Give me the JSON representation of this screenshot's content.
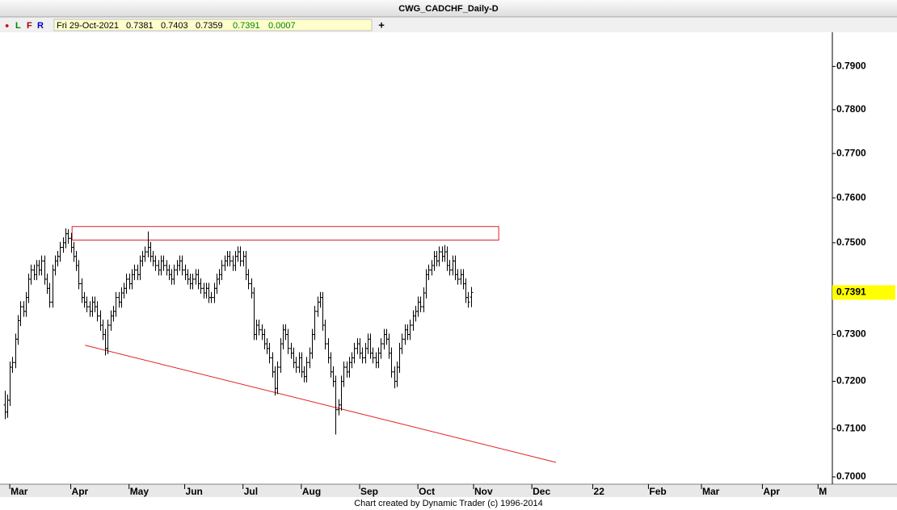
{
  "header": {
    "toolbar": [
      "●",
      "L",
      "F",
      "R"
    ],
    "plus": "+"
  },
  "footer": "Chart created by Dynamic Trader  (c)  1996-2014",
  "chart_data": {
    "type": "ohlc",
    "title": "CWG_CADCHF_Daily-D",
    "date": "Fri 29-Oct-2021",
    "change": 0.0007,
    "log": true,
    "color": "#000000",
    "annotation_color": "#e02020",
    "last_price_color": "#ffff00",
    "xlim": [
      -3.7,
      310.4
    ],
    "ylim": [
      0.6985,
      0.798
    ],
    "xticks": [
      {
        "value": 0,
        "label": "Mar"
      },
      {
        "value": 23,
        "label": "Apr"
      },
      {
        "value": 45,
        "label": "May"
      },
      {
        "value": 66,
        "label": "Jun"
      },
      {
        "value": 88,
        "label": "Jul"
      },
      {
        "value": 110,
        "label": "Aug"
      },
      {
        "value": 132,
        "label": "Sep"
      },
      {
        "value": 154,
        "label": "Oct"
      },
      {
        "value": 175,
        "label": "Nov"
      },
      {
        "value": 197,
        "label": "Dec"
      },
      {
        "value": 220,
        "label": "22"
      },
      {
        "value": 241,
        "label": "Feb"
      },
      {
        "value": 261,
        "label": "Mar"
      },
      {
        "value": 284,
        "label": "Apr"
      },
      {
        "value": 305,
        "label": "M"
      }
    ],
    "yticks": [
      {
        "value": 0.7,
        "label": "0.7000"
      },
      {
        "value": 0.71,
        "label": "0.7100"
      },
      {
        "value": 0.72,
        "label": "0.7200"
      },
      {
        "value": 0.73,
        "label": "0.7300"
      },
      {
        "value": 0.75,
        "label": "0.7500"
      },
      {
        "value": 0.76,
        "label": "0.7600"
      },
      {
        "value": 0.77,
        "label": "0.7700"
      },
      {
        "value": 0.78,
        "label": "0.7800"
      },
      {
        "value": 0.79,
        "label": "0.7900"
      }
    ],
    "rectangle": {
      "x": [
        23.5,
        184.5
      ],
      "y": [
        0.7506,
        0.7536
      ]
    },
    "trendline": {
      "x": [
        28.4,
        206.1
      ],
      "y": [
        0.7277,
        0.703
      ]
    },
    "x": [
      -2,
      -1,
      0,
      1,
      2,
      3,
      4,
      5,
      6,
      7,
      8,
      9,
      10,
      11,
      12,
      13,
      14,
      15,
      16,
      17,
      18,
      19,
      20,
      21,
      22,
      23,
      24,
      25,
      26,
      27,
      28,
      29,
      30,
      31,
      32,
      33,
      34,
      35,
      36,
      37,
      38,
      39,
      40,
      41,
      42,
      43,
      44,
      45,
      46,
      47,
      48,
      49,
      50,
      51,
      52,
      53,
      54,
      55,
      56,
      57,
      58,
      59,
      60,
      61,
      62,
      63,
      64,
      65,
      66,
      67,
      68,
      69,
      70,
      71,
      72,
      73,
      74,
      75,
      76,
      77,
      78,
      79,
      80,
      81,
      82,
      83,
      84,
      85,
      86,
      87,
      88,
      89,
      90,
      91,
      92,
      93,
      94,
      95,
      96,
      97,
      98,
      99,
      100,
      101,
      102,
      103,
      104,
      105,
      106,
      107,
      108,
      109,
      110,
      111,
      112,
      113,
      114,
      115,
      116,
      117,
      118,
      119,
      120,
      121,
      122,
      123,
      124,
      125,
      126,
      127,
      128,
      129,
      130,
      131,
      132,
      133,
      134,
      135,
      136,
      137,
      138,
      139,
      140,
      141,
      142,
      143,
      144,
      145,
      146,
      147,
      148,
      149,
      150,
      151,
      152,
      153,
      154,
      155,
      156,
      157,
      158,
      159,
      160,
      161,
      162,
      163,
      164,
      165,
      166,
      167,
      168,
      169,
      170,
      171,
      172,
      173,
      174
    ],
    "open": [
      0.715,
      0.7135,
      0.716,
      0.723,
      0.724,
      0.729,
      0.733,
      0.736,
      0.735,
      0.738,
      0.742,
      0.744,
      0.743,
      0.745,
      0.744,
      0.746,
      0.742,
      0.74,
      0.737,
      0.744,
      0.746,
      0.747,
      0.749,
      0.75,
      0.752,
      0.751,
      0.749,
      0.747,
      0.745,
      0.741,
      0.738,
      0.737,
      0.736,
      0.735,
      0.737,
      0.736,
      0.734,
      0.732,
      0.73,
      0.727,
      0.732,
      0.734,
      0.735,
      0.738,
      0.737,
      0.739,
      0.74,
      0.742,
      0.741,
      0.743,
      0.744,
      0.743,
      0.746,
      0.747,
      0.748,
      0.749,
      0.747,
      0.746,
      0.745,
      0.744,
      0.746,
      0.745,
      0.744,
      0.743,
      0.742,
      0.744,
      0.745,
      0.746,
      0.744,
      0.743,
      0.742,
      0.741,
      0.742,
      0.743,
      0.741,
      0.74,
      0.739,
      0.74,
      0.738,
      0.738,
      0.74,
      0.742,
      0.743,
      0.745,
      0.746,
      0.747,
      0.746,
      0.745,
      0.747,
      0.748,
      0.746,
      0.747,
      0.743,
      0.741,
      0.739,
      0.73,
      0.732,
      0.731,
      0.73,
      0.728,
      0.727,
      0.725,
      0.722,
      0.7185,
      0.723,
      0.728,
      0.731,
      0.73,
      0.727,
      0.726,
      0.724,
      0.723,
      0.725,
      0.722,
      0.721,
      0.724,
      0.726,
      0.73,
      0.735,
      0.737,
      0.738,
      0.732,
      0.728,
      0.725,
      0.722,
      0.72,
      0.714,
      0.715,
      0.72,
      0.723,
      0.722,
      0.724,
      0.725,
      0.727,
      0.728,
      0.726,
      0.725,
      0.727,
      0.729,
      0.726,
      0.725,
      0.724,
      0.726,
      0.728,
      0.73,
      0.729,
      0.726,
      0.722,
      0.72,
      0.723,
      0.727,
      0.729,
      0.731,
      0.73,
      0.732,
      0.734,
      0.735,
      0.737,
      0.736,
      0.739,
      0.743,
      0.744,
      0.745,
      0.747,
      0.746,
      0.748,
      0.747,
      0.748,
      0.745,
      0.744,
      0.746,
      0.743,
      0.742,
      0.743,
      0.741,
      0.738,
      0.7381
    ],
    "high": [
      0.718,
      0.7172,
      0.7242,
      0.7252,
      0.7302,
      0.7342,
      0.7372,
      0.7372,
      0.7392,
      0.7432,
      0.7452,
      0.7452,
      0.7462,
      0.7462,
      0.7472,
      0.7472,
      0.7432,
      0.7412,
      0.7452,
      0.7472,
      0.7482,
      0.7502,
      0.7512,
      0.7532,
      0.753,
      0.7522,
      0.7502,
      0.7482,
      0.7462,
      0.7422,
      0.7392,
      0.7382,
      0.7372,
      0.7382,
      0.7382,
      0.7372,
      0.7352,
      0.7332,
      0.7312,
      0.7332,
      0.7352,
      0.7362,
      0.7392,
      0.7392,
      0.7402,
      0.7412,
      0.7432,
      0.7432,
      0.7442,
      0.7452,
      0.7452,
      0.7472,
      0.7482,
      0.7492,
      0.7525,
      0.7502,
      0.7482,
      0.7472,
      0.7462,
      0.7472,
      0.7472,
      0.7462,
      0.7452,
      0.7442,
      0.7452,
      0.7462,
      0.7472,
      0.7472,
      0.7452,
      0.7442,
      0.7432,
      0.7432,
      0.7442,
      0.7442,
      0.7422,
      0.7412,
      0.7412,
      0.7412,
      0.7392,
      0.7412,
      0.7432,
      0.7442,
      0.7462,
      0.7472,
      0.7482,
      0.7482,
      0.7472,
      0.7482,
      0.7492,
      0.7492,
      0.7482,
      0.7482,
      0.7442,
      0.7422,
      0.7402,
      0.7332,
      0.7332,
      0.7322,
      0.7312,
      0.7292,
      0.7282,
      0.7262,
      0.7232,
      0.7242,
      0.7292,
      0.7322,
      0.7322,
      0.7312,
      0.7282,
      0.7272,
      0.7252,
      0.7262,
      0.7262,
      0.7232,
      0.7252,
      0.7272,
      0.7312,
      0.7362,
      0.7382,
      0.7392,
      0.7392,
      0.7332,
      0.7292,
      0.7262,
      0.7232,
      0.7212,
      0.7162,
      0.7212,
      0.7242,
      0.7242,
      0.7252,
      0.7262,
      0.7282,
      0.7292,
      0.7292,
      0.7272,
      0.7282,
      0.7302,
      0.7302,
      0.7272,
      0.7262,
      0.7272,
      0.7292,
      0.7312,
      0.7312,
      0.7302,
      0.7272,
      0.7232,
      0.7242,
      0.7282,
      0.7302,
      0.7322,
      0.7322,
      0.7332,
      0.7352,
      0.7362,
      0.7382,
      0.7382,
      0.7402,
      0.7442,
      0.7452,
      0.7462,
      0.7482,
      0.7482,
      0.7492,
      0.7492,
      0.7495,
      0.7492,
      0.7462,
      0.7472,
      0.7472,
      0.7442,
      0.7442,
      0.7442,
      0.7422,
      0.7392,
      0.7403
    ],
    "low": [
      0.712,
      0.7123,
      0.7148,
      0.7218,
      0.7228,
      0.7278,
      0.7318,
      0.7338,
      0.7338,
      0.7368,
      0.7408,
      0.7418,
      0.7418,
      0.7428,
      0.7428,
      0.7408,
      0.7388,
      0.7358,
      0.7358,
      0.7428,
      0.7448,
      0.7458,
      0.7478,
      0.7488,
      0.7498,
      0.7478,
      0.7458,
      0.7438,
      0.7398,
      0.7368,
      0.7358,
      0.7348,
      0.7338,
      0.7338,
      0.7348,
      0.7328,
      0.7308,
      0.7288,
      0.7255,
      0.7258,
      0.7308,
      0.7328,
      0.7338,
      0.7358,
      0.7358,
      0.7378,
      0.7388,
      0.7398,
      0.7398,
      0.7418,
      0.7418,
      0.7418,
      0.7448,
      0.7458,
      0.7468,
      0.7458,
      0.7448,
      0.7438,
      0.7428,
      0.7428,
      0.7438,
      0.7428,
      0.7418,
      0.7408,
      0.7408,
      0.7428,
      0.7438,
      0.7428,
      0.7418,
      0.7408,
      0.7398,
      0.7398,
      0.7408,
      0.7398,
      0.7388,
      0.7378,
      0.7378,
      0.7368,
      0.7368,
      0.7368,
      0.7388,
      0.7408,
      0.7418,
      0.7438,
      0.7448,
      0.7448,
      0.7438,
      0.7438,
      0.7458,
      0.7448,
      0.7448,
      0.7418,
      0.7398,
      0.7378,
      0.7288,
      0.7288,
      0.7298,
      0.7288,
      0.7268,
      0.7258,
      0.7238,
      0.7208,
      0.717,
      0.7173,
      0.7218,
      0.7268,
      0.7288,
      0.7258,
      0.7248,
      0.7228,
      0.7218,
      0.7218,
      0.7208,
      0.7198,
      0.7198,
      0.7228,
      0.7248,
      0.7288,
      0.7338,
      0.7358,
      0.7308,
      0.7268,
      0.7238,
      0.7208,
      0.7188,
      0.7088,
      0.7128,
      0.7138,
      0.7188,
      0.7208,
      0.7208,
      0.7228,
      0.7238,
      0.7258,
      0.7248,
      0.7238,
      0.7238,
      0.7258,
      0.7248,
      0.7238,
      0.7228,
      0.7228,
      0.7248,
      0.7268,
      0.7278,
      0.7248,
      0.7208,
      0.7185,
      0.7188,
      0.7218,
      0.7258,
      0.7278,
      0.7288,
      0.7288,
      0.7308,
      0.7328,
      0.7338,
      0.7348,
      0.7348,
      0.7378,
      0.7418,
      0.7428,
      0.7438,
      0.7448,
      0.7448,
      0.7458,
      0.7458,
      0.7438,
      0.7428,
      0.7428,
      0.7418,
      0.7408,
      0.7408,
      0.7398,
      0.7368,
      0.7358,
      0.7359
    ],
    "close": [
      0.7135,
      0.716,
      0.723,
      0.724,
      0.729,
      0.733,
      0.736,
      0.735,
      0.738,
      0.742,
      0.744,
      0.743,
      0.745,
      0.744,
      0.746,
      0.742,
      0.74,
      0.737,
      0.744,
      0.746,
      0.747,
      0.749,
      0.75,
      0.752,
      0.751,
      0.749,
      0.747,
      0.745,
      0.741,
      0.738,
      0.737,
      0.736,
      0.735,
      0.737,
      0.736,
      0.734,
      0.732,
      0.73,
      0.727,
      0.732,
      0.734,
      0.735,
      0.738,
      0.737,
      0.739,
      0.74,
      0.742,
      0.741,
      0.743,
      0.744,
      0.743,
      0.746,
      0.747,
      0.748,
      0.749,
      0.747,
      0.746,
      0.745,
      0.744,
      0.746,
      0.745,
      0.744,
      0.743,
      0.742,
      0.744,
      0.745,
      0.746,
      0.744,
      0.743,
      0.742,
      0.741,
      0.742,
      0.743,
      0.741,
      0.74,
      0.739,
      0.74,
      0.738,
      0.738,
      0.74,
      0.742,
      0.743,
      0.745,
      0.746,
      0.747,
      0.746,
      0.745,
      0.747,
      0.748,
      0.746,
      0.747,
      0.743,
      0.741,
      0.739,
      0.73,
      0.732,
      0.731,
      0.73,
      0.728,
      0.727,
      0.725,
      0.722,
      0.7185,
      0.723,
      0.728,
      0.731,
      0.73,
      0.727,
      0.726,
      0.724,
      0.723,
      0.725,
      0.722,
      0.721,
      0.724,
      0.726,
      0.73,
      0.735,
      0.737,
      0.738,
      0.732,
      0.728,
      0.725,
      0.722,
      0.72,
      0.714,
      0.715,
      0.72,
      0.723,
      0.722,
      0.724,
      0.725,
      0.727,
      0.728,
      0.726,
      0.725,
      0.727,
      0.729,
      0.726,
      0.725,
      0.724,
      0.726,
      0.728,
      0.73,
      0.729,
      0.726,
      0.722,
      0.72,
      0.723,
      0.727,
      0.729,
      0.731,
      0.73,
      0.732,
      0.734,
      0.735,
      0.737,
      0.736,
      0.739,
      0.743,
      0.744,
      0.745,
      0.747,
      0.746,
      0.748,
      0.747,
      0.748,
      0.745,
      0.744,
      0.746,
      0.743,
      0.742,
      0.743,
      0.741,
      0.738,
      0.737,
      0.7391
    ]
  }
}
